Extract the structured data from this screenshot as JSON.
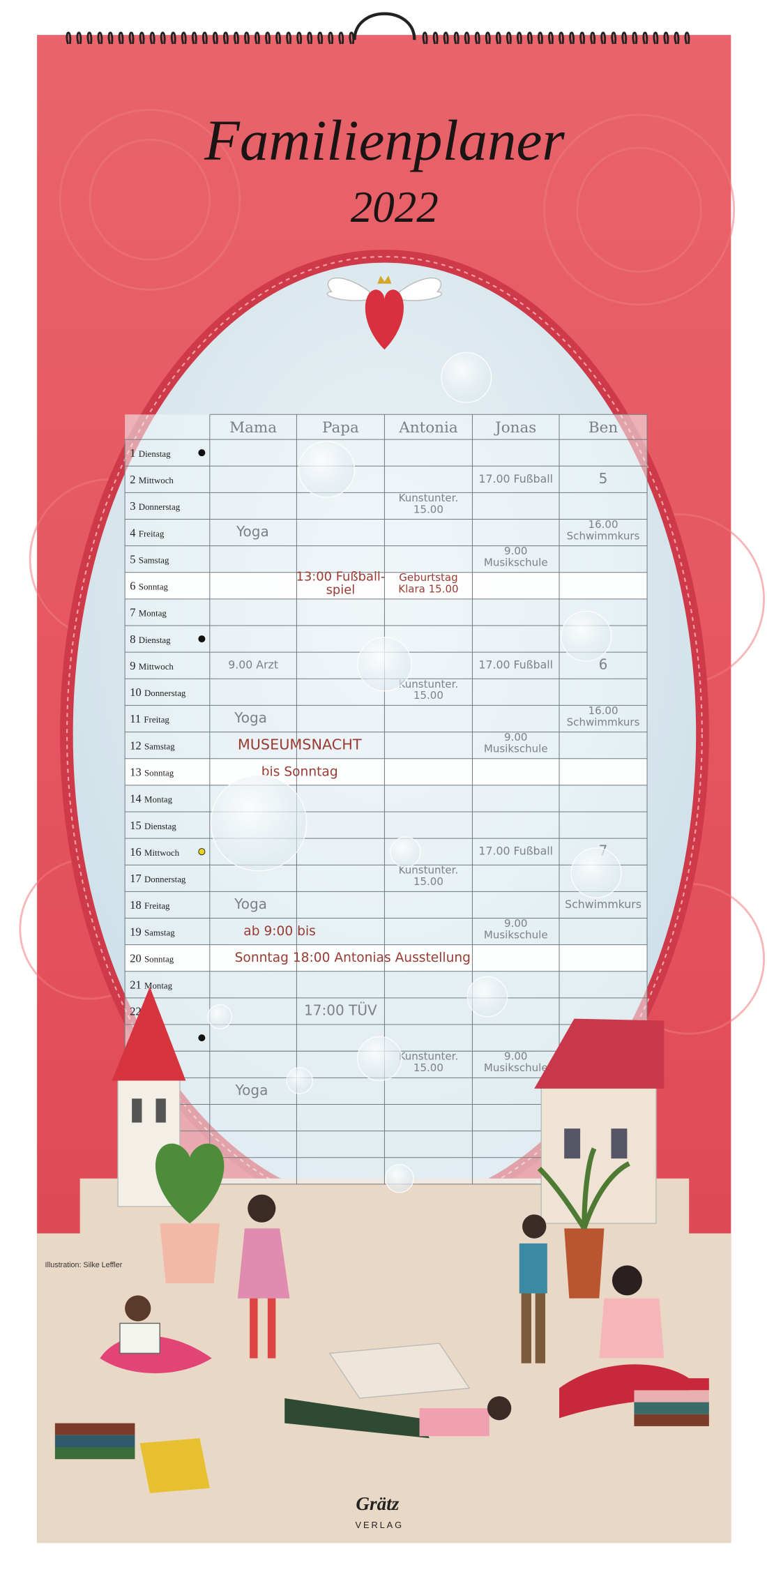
{
  "header": {
    "title": "Familienplaner",
    "year": "2022"
  },
  "table": {
    "columns": [
      "Mama",
      "Papa",
      "Antonia",
      "Jonas",
      "Ben"
    ],
    "rows": [
      [
        "1",
        "Dienstag",
        null,
        null,
        null,
        null,
        null
      ],
      [
        "2",
        "Mittwoch",
        null,
        null,
        null,
        "17.00 Fußball",
        "5"
      ],
      [
        "3",
        "Donnerstag",
        null,
        null,
        [
          "Kunstunter.",
          "15.00"
        ],
        null,
        null
      ],
      [
        "4",
        "Freitag",
        "Yoga",
        null,
        null,
        null,
        [
          "16.00",
          "Schwimmkurs"
        ]
      ],
      [
        "5",
        "Samstag",
        null,
        null,
        null,
        [
          "9.00",
          "Musikschule"
        ],
        null
      ],
      [
        "6",
        "Sonntag",
        null,
        [
          "13:00 Fußball-",
          "spiel"
        ],
        [
          "Geburtstag",
          "Klara 15.00"
        ],
        null,
        null
      ],
      [
        "7",
        "Montag",
        null,
        null,
        null,
        null,
        null
      ],
      [
        "8",
        "Dienstag",
        null,
        null,
        null,
        null,
        null
      ],
      [
        "9",
        "Mittwoch",
        "9.00 Arzt",
        null,
        null,
        "17.00 Fußball",
        "6"
      ],
      [
        "10",
        "Donnerstag",
        null,
        null,
        [
          "Kunstunter.",
          "15.00"
        ],
        null,
        null
      ],
      [
        "11",
        "Freitag",
        "Yoga",
        null,
        null,
        null,
        [
          "16.00",
          "Schwimmkurs"
        ]
      ],
      [
        "12",
        "Samstag",
        "MUSEUMSNACHT",
        null,
        null,
        [
          "9.00",
          "Musikschule"
        ],
        null
      ],
      [
        "13",
        "Sonntag",
        "bis Sonntag",
        null,
        null,
        null,
        null
      ],
      [
        "14",
        "Montag",
        null,
        null,
        null,
        null,
        null
      ],
      [
        "15",
        "Dienstag",
        null,
        null,
        null,
        null,
        null
      ],
      [
        "16",
        "Mittwoch",
        null,
        null,
        null,
        "17.00 Fußball",
        "7"
      ],
      [
        "17",
        "Donnerstag",
        null,
        null,
        [
          "Kunstunter.",
          "15.00"
        ],
        null,
        null
      ],
      [
        "18",
        "Freitag",
        "Yoga",
        null,
        null,
        null,
        "Schwimmkurs"
      ],
      [
        "19",
        "Samstag",
        "ab 9:00 bis",
        null,
        null,
        [
          "9.00",
          "Musikschule"
        ],
        null
      ],
      [
        "20",
        "Sonntag",
        "Sonntag 18:00 Antonias Ausstellung",
        null,
        null,
        null,
        null
      ],
      [
        "21",
        "Montag",
        null,
        null,
        null,
        null,
        null
      ],
      [
        "22",
        null,
        null,
        "17:00 TÜV",
        null,
        null,
        null
      ],
      [
        null,
        null,
        null,
        null,
        null,
        null,
        null
      ],
      [
        null,
        null,
        null,
        null,
        [
          "Kunstunter.",
          "15.00"
        ],
        [
          "9.00",
          "Musikschule"
        ],
        null
      ],
      [
        null,
        null,
        "Yoga",
        null,
        null,
        null,
        null
      ]
    ]
  },
  "footer": {
    "credit": "Illustration: Silke Leffler",
    "publisher": "Grätz",
    "publisher_sub": "VERLAG"
  }
}
